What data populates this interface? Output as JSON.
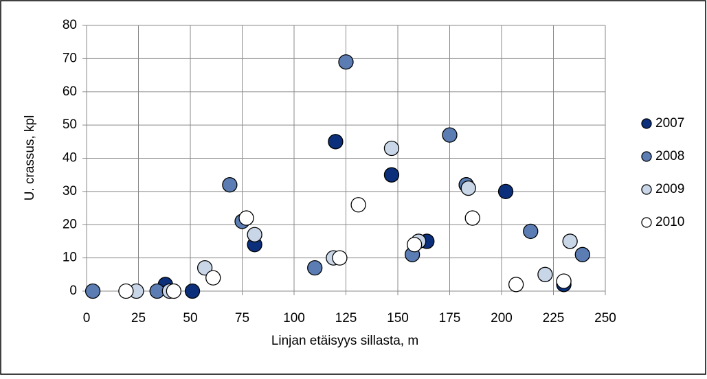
{
  "chart_data": {
    "type": "scatter",
    "x_label": "Linjan etäisyys sillasta, m",
    "y_label": "U. crassus, kpl",
    "xlim": [
      0,
      250
    ],
    "xticks": [
      0,
      25,
      50,
      75,
      100,
      125,
      150,
      175,
      200,
      225,
      250
    ],
    "ylim": [
      0,
      80
    ],
    "yticks": [
      0,
      10,
      20,
      30,
      40,
      50,
      60,
      70,
      80
    ],
    "grid": true,
    "legend": "right",
    "series": [
      {
        "name": "2007",
        "color": "#0b2f7a",
        "x": [
          38,
          51,
          81,
          120,
          147,
          164,
          183,
          202,
          230
        ],
        "y": [
          2,
          0,
          14,
          45,
          35,
          15,
          32,
          30,
          2
        ]
      },
      {
        "name": "2008",
        "color": "#5b7db3",
        "x": [
          3,
          34,
          69,
          75,
          110,
          125,
          157,
          175,
          183,
          214,
          239
        ],
        "y": [
          0,
          0,
          32,
          21,
          7,
          69,
          11,
          47,
          32,
          18,
          11
        ]
      },
      {
        "name": "2009",
        "color": "#c8d6e8",
        "x": [
          24,
          40,
          57,
          81,
          119,
          147,
          160,
          184,
          221,
          233
        ],
        "y": [
          0,
          0,
          7,
          17,
          10,
          43,
          15,
          31,
          5,
          15
        ]
      },
      {
        "name": "2010",
        "color": "#ffffff",
        "x": [
          19,
          42,
          61,
          77,
          122,
          131,
          158,
          186,
          207,
          230
        ],
        "y": [
          0,
          0,
          4,
          22,
          10,
          26,
          14,
          22,
          2,
          3
        ]
      }
    ]
  }
}
